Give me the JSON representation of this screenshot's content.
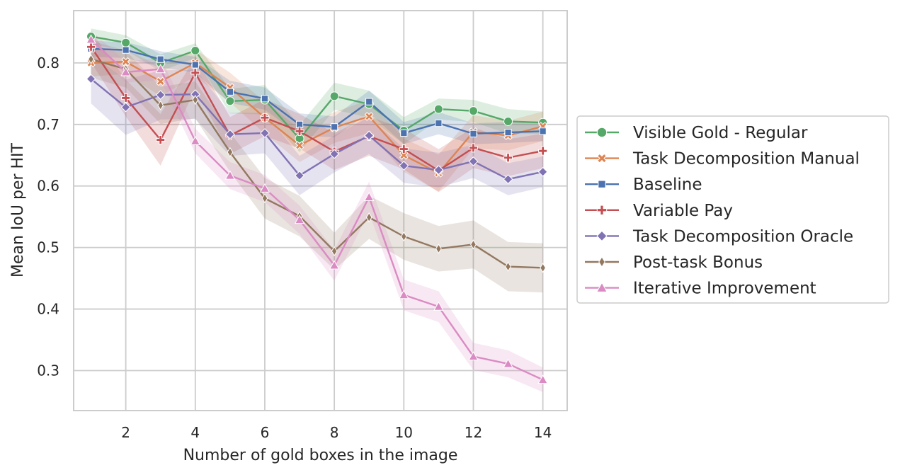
{
  "chart_data": {
    "type": "line",
    "xlabel": "Number of gold boxes in the image",
    "ylabel": "Mean IoU per HIT",
    "xlim": [
      0.5,
      14.7
    ],
    "ylim": [
      0.235,
      0.885
    ],
    "xticks": [
      "2",
      "4",
      "6",
      "8",
      "10",
      "12",
      "14"
    ],
    "yticks": [
      "0.3",
      "0.4",
      "0.5",
      "0.6",
      "0.7",
      "0.8"
    ],
    "grid": true,
    "legend_position": "right, outside plot",
    "x": [
      1,
      2,
      3,
      4,
      5,
      6,
      7,
      8,
      9,
      10,
      11,
      12,
      13,
      14
    ],
    "series": [
      {
        "name": "Visible Gold - Regular",
        "color": "#55a868",
        "marker": "circle",
        "values": [
          0.843,
          0.833,
          0.8,
          0.82,
          0.738,
          0.74,
          0.677,
          0.746,
          0.733,
          0.69,
          0.725,
          0.722,
          0.705,
          0.703
        ],
        "ci": [
          0.013,
          0.012,
          0.014,
          0.012,
          0.02,
          0.024,
          0.022,
          0.022,
          0.022,
          0.022,
          0.017,
          0.018,
          0.02,
          0.018
        ]
      },
      {
        "name": "Task Decomposition Manual",
        "color": "#dd8452",
        "marker": "x",
        "values": [
          0.8,
          0.802,
          0.77,
          0.8,
          0.76,
          0.711,
          0.666,
          0.695,
          0.713,
          0.65,
          0.621,
          0.688,
          0.682,
          0.697
        ],
        "ci": [
          0.022,
          0.02,
          0.024,
          0.022,
          0.024,
          0.026,
          0.027,
          0.025,
          0.027,
          0.027,
          0.03,
          0.027,
          0.024,
          0.024
        ]
      },
      {
        "name": "Baseline",
        "color": "#4c72b0",
        "marker": "square",
        "values": [
          0.823,
          0.821,
          0.806,
          0.797,
          0.753,
          0.742,
          0.7,
          0.696,
          0.737,
          0.686,
          0.702,
          0.685,
          0.687,
          0.689
        ],
        "ci": [
          0.013,
          0.013,
          0.013,
          0.013,
          0.018,
          0.018,
          0.018,
          0.017,
          0.018,
          0.018,
          0.018,
          0.017,
          0.017,
          0.016
        ]
      },
      {
        "name": "Variable Pay",
        "color": "#c44e52",
        "marker": "plus",
        "values": [
          0.826,
          0.743,
          0.675,
          0.784,
          0.682,
          0.711,
          0.689,
          0.656,
          0.681,
          0.66,
          0.625,
          0.662,
          0.646,
          0.657
        ],
        "ci": [
          0.025,
          0.03,
          0.042,
          0.025,
          0.03,
          0.03,
          0.028,
          0.03,
          0.032,
          0.033,
          0.035,
          0.033,
          0.03,
          0.028
        ]
      },
      {
        "name": "Task Decomposition Oracle",
        "color": "#8172b3",
        "marker": "diamond",
        "values": [
          0.774,
          0.728,
          0.748,
          0.749,
          0.684,
          0.686,
          0.617,
          0.652,
          0.682,
          0.633,
          0.626,
          0.64,
          0.611,
          0.623
        ],
        "ci": [
          0.04,
          0.045,
          0.04,
          0.04,
          0.035,
          0.033,
          0.032,
          0.03,
          0.03,
          0.028,
          0.028,
          0.027,
          0.026,
          0.025
        ]
      },
      {
        "name": "Post-task Bonus",
        "color": "#937860",
        "marker": "thin_diamond",
        "values": [
          0.806,
          0.79,
          0.731,
          0.74,
          0.655,
          0.58,
          0.551,
          0.494,
          0.549,
          0.518,
          0.498,
          0.505,
          0.469,
          0.467
        ],
        "ci": [
          0.03,
          0.03,
          0.03,
          0.03,
          0.032,
          0.033,
          0.033,
          0.03,
          0.035,
          0.038,
          0.037,
          0.039,
          0.04,
          0.04
        ]
      },
      {
        "name": "Iterative Improvement",
        "color": "#da8bc3",
        "marker": "triangle",
        "values": [
          0.838,
          0.785,
          0.79,
          0.673,
          0.617,
          0.596,
          0.545,
          0.471,
          0.582,
          0.423,
          0.404,
          0.323,
          0.311,
          0.285
        ],
        "ci": [
          0.015,
          0.017,
          0.018,
          0.02,
          0.022,
          0.022,
          0.023,
          0.025,
          0.025,
          0.025,
          0.025,
          0.022,
          0.022,
          0.02
        ]
      }
    ]
  }
}
